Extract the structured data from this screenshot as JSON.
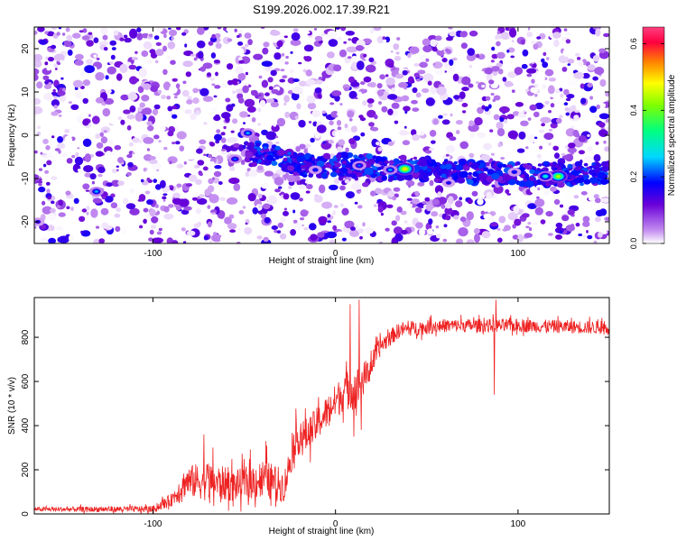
{
  "chart_data": [
    {
      "type": "heatmap",
      "title": "S199.2026.002.17.39.R21",
      "xlabel": "Height of straight line (km)",
      "ylabel": "Frequency (Hz)",
      "xlim": [
        -165,
        150
      ],
      "ylim": [
        -25,
        25
      ],
      "x_ticks": [
        "-100",
        "0",
        "100"
      ],
      "y_ticks": [
        "20",
        "10",
        "0",
        "-10",
        "-20"
      ],
      "colorbar": {
        "label": "Normalized spectral amplitude",
        "range": [
          0.0,
          0.65
        ],
        "ticks": [
          "0.0",
          "0.2",
          "0.4",
          "0.6"
        ],
        "colors": [
          "#ffffff",
          "#c48ef0",
          "#6a00d8",
          "#0000ff",
          "#00d8ff",
          "#00ff80",
          "#80ff00",
          "#ffff00",
          "#ff8000",
          "#ff0040",
          "#ff4080"
        ]
      },
      "ridge": {
        "description_points": [
          [
            -48,
            0
          ],
          [
            -55,
            -5
          ],
          [
            -40,
            -4
          ],
          [
            -20,
            -7
          ],
          [
            -10,
            -7.5
          ],
          [
            0,
            -7
          ],
          [
            14,
            -7
          ],
          [
            30,
            -8
          ],
          [
            38,
            -7.5
          ],
          [
            60,
            -8
          ],
          [
            75,
            -8.5
          ],
          [
            98,
            -9
          ],
          [
            115,
            -9
          ],
          [
            122,
            -9
          ],
          [
            150,
            -9
          ]
        ],
        "hotspots": [
          {
            "x": 38,
            "y": -7.8,
            "value": 0.5
          },
          {
            "x": 122,
            "y": -9.5,
            "value": 0.45
          },
          {
            "x": 115,
            "y": -9.5,
            "value": 0.3
          },
          {
            "x": -48,
            "y": 0.5,
            "value": 0.25
          },
          {
            "x": -55,
            "y": -5.5,
            "value": 0.22
          },
          {
            "x": -11,
            "y": -8,
            "value": 0.2
          },
          {
            "x": 13,
            "y": -7,
            "value": 0.22
          },
          {
            "x": 30,
            "y": -8,
            "value": 0.25
          },
          {
            "x": 98,
            "y": -8.5,
            "value": 0.2
          },
          {
            "x": 62,
            "y": -11,
            "value": 0.18
          },
          {
            "x": -131,
            "y": -13,
            "value": 0.25
          },
          {
            "x": -163,
            "y": -20,
            "value": 0.18
          }
        ]
      }
    },
    {
      "type": "line",
      "xlabel": "Height of straight line (km)",
      "ylabel": "SNR (10 * v/v)",
      "xlim": [
        -165,
        150
      ],
      "ylim": [
        0,
        980
      ],
      "x_ticks": [
        "-100",
        "0",
        "100"
      ],
      "y_ticks": [
        "0",
        "200",
        "400",
        "600",
        "800"
      ],
      "color": "#ee2222",
      "envelope": [
        {
          "x": -165,
          "base": 20,
          "amp": 20
        },
        {
          "x": -100,
          "base": 20,
          "amp": 30
        },
        {
          "x": -90,
          "base": 60,
          "amp": 60
        },
        {
          "x": -82,
          "base": 140,
          "amp": 140
        },
        {
          "x": -70,
          "base": 140,
          "amp": 180
        },
        {
          "x": -55,
          "base": 120,
          "amp": 140
        },
        {
          "x": -40,
          "base": 150,
          "amp": 180
        },
        {
          "x": -28,
          "base": 120,
          "amp": 150
        },
        {
          "x": -22,
          "base": 330,
          "amp": 150
        },
        {
          "x": -15,
          "base": 350,
          "amp": 160
        },
        {
          "x": -5,
          "base": 450,
          "amp": 150
        },
        {
          "x": 5,
          "base": 550,
          "amp": 170
        },
        {
          "x": 12,
          "base": 560,
          "amp": 200
        },
        {
          "x": 18,
          "base": 640,
          "amp": 120
        },
        {
          "x": 25,
          "base": 760,
          "amp": 80
        },
        {
          "x": 35,
          "base": 830,
          "amp": 70
        },
        {
          "x": 60,
          "base": 850,
          "amp": 60
        },
        {
          "x": 100,
          "base": 850,
          "amp": 60
        },
        {
          "x": 150,
          "base": 840,
          "amp": 60
        }
      ],
      "spikes": [
        {
          "x": 8,
          "y": 950
        },
        {
          "x": 10,
          "y": 350
        },
        {
          "x": 13,
          "y": 970
        },
        {
          "x": 14,
          "y": 380
        },
        {
          "x": 88,
          "y": 970
        },
        {
          "x": 87,
          "y": 540
        },
        {
          "x": -72,
          "y": 360
        },
        {
          "x": -38,
          "y": 330
        }
      ]
    }
  ]
}
